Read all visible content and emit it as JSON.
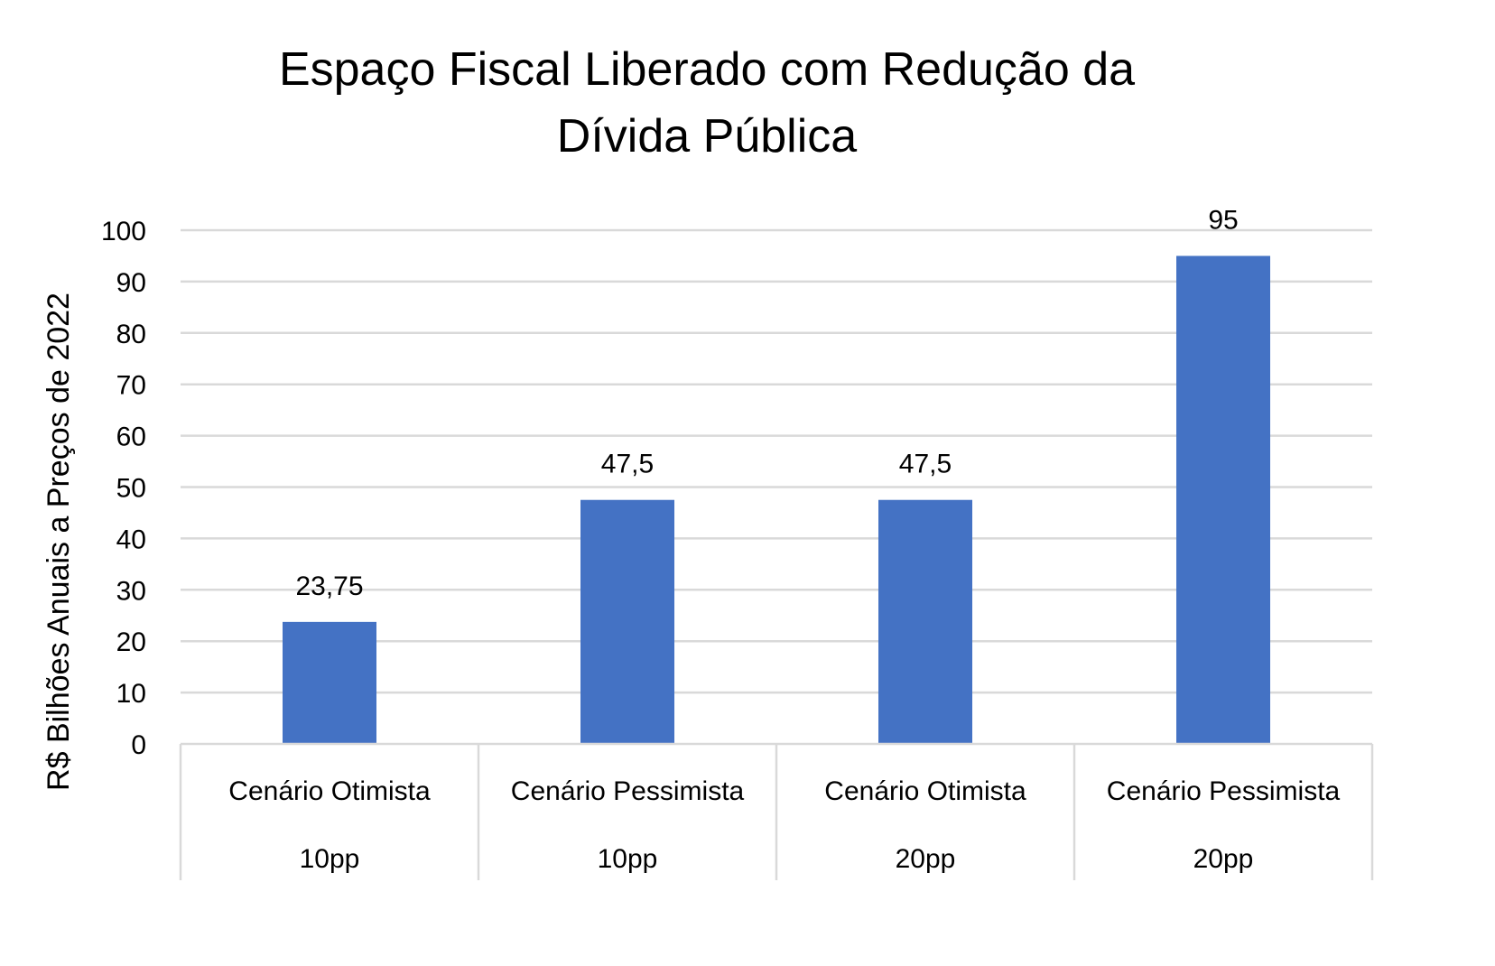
{
  "chart_data": {
    "type": "bar",
    "title": "Espaço Fiscal Liberado com Redução da Dívida Pública",
    "title_lines": [
      "Espaço Fiscal Liberado com Redução da",
      "Dívida Pública"
    ],
    "categories": [
      [
        "Cenário Otimista",
        "10pp"
      ],
      [
        "Cenário Pessimista",
        "10pp"
      ],
      [
        "Cenário Otimista",
        "20pp"
      ],
      [
        "Cenário Pessimista",
        "20pp"
      ]
    ],
    "values": [
      23.75,
      47.5,
      47.5,
      95
    ],
    "data_labels": [
      "23,75",
      "47,5",
      "47,5",
      "95"
    ],
    "xlabel": "",
    "ylabel": "R$ Bilhões Anuais a Preços de 2022",
    "ylim": [
      0,
      100
    ],
    "yticks": [
      0,
      10,
      20,
      30,
      40,
      50,
      60,
      70,
      80,
      90,
      100
    ],
    "grid": true,
    "legend": "none",
    "bar_color": "#4472C4",
    "grid_color": "#D9D9D9"
  }
}
